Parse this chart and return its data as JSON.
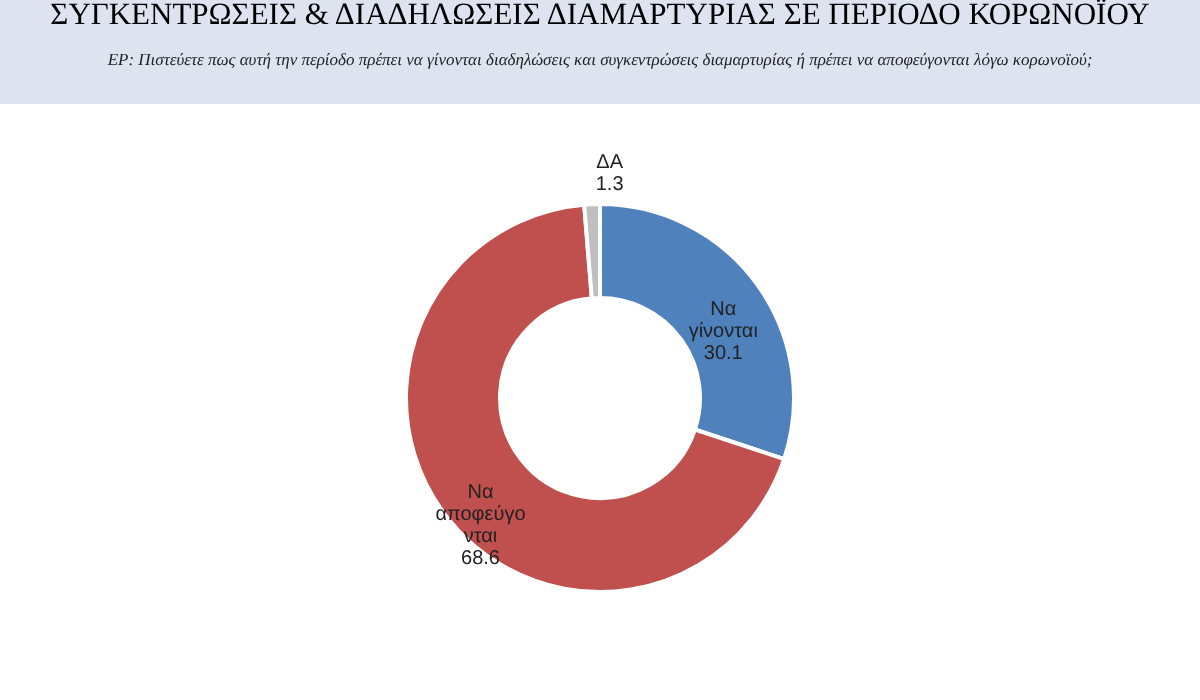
{
  "chart_data": {
    "type": "donut",
    "title": "ΣΥΓΚΕΝΤΡΩΣΕΙΣ & ΔΙΑΔΗΛΩΣΕΙΣ ΔΙΑΜΑΡΤΥΡΙΑΣ ΣΕ ΠΕΡΙΟΔΟ ΚΟΡΩΝΟΪΟΥ",
    "subtitle": "ΕΡ: Πιστεύετε πως αυτή την περίοδο πρέπει να γίνονται διαδηλώσεις και συγκεντρώσεις διαμαρτυρίας ή πρέπει να αποφεύγονται λόγω κορωνοϊού;",
    "categories": [
      "Να γίνονται",
      "Να αποφεύγονται",
      "ΔΑ"
    ],
    "values": [
      30.1,
      68.6,
      1.3
    ],
    "colors": [
      "#4f81bd",
      "#c0504d",
      "#bfbfbf"
    ],
    "data_labels": true
  }
}
